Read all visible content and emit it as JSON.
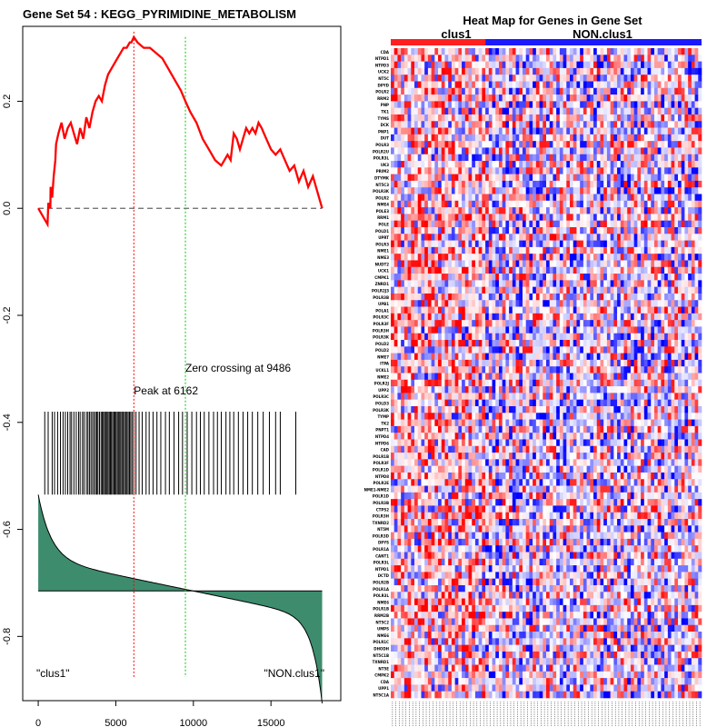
{
  "chart_data": [
    {
      "type": "line",
      "title": "Gene Set  54 : KEGG_PYRIMIDINE_METABOLISM",
      "xlabel": "",
      "ylabel": "",
      "xlim": [
        -1000,
        19500
      ],
      "ylim": [
        -0.92,
        0.34
      ],
      "xticks": [
        0,
        5000,
        10000,
        15000
      ],
      "xtick_labels": [
        "0",
        "5000",
        "10000",
        "15000"
      ],
      "yticks": [
        0.2,
        0.0,
        -0.2,
        -0.4,
        -0.6,
        -0.8
      ],
      "ytick_labels": [
        "0.2",
        "0.0",
        "-0.2",
        "-0.4",
        "-0.6",
        "-0.8"
      ],
      "running_es": {
        "x": [
          0,
          600,
          650,
          780,
          800,
          900,
          1000,
          1100,
          1150,
          1300,
          1500,
          1700,
          1900,
          2100,
          2300,
          2500,
          2700,
          2900,
          3100,
          3300,
          3500,
          3700,
          3900,
          4100,
          4300,
          4500,
          4700,
          4900,
          5100,
          5300,
          5500,
          5700,
          5900,
          6000,
          6162,
          6400,
          6800,
          7200,
          7600,
          8000,
          8400,
          8800,
          9200,
          9486,
          9800,
          10200,
          10600,
          11000,
          11400,
          11800,
          12000,
          12200,
          12400,
          12600,
          12800,
          13000,
          13200,
          13400,
          13600,
          13800,
          14000,
          14200,
          14400,
          14700,
          15000,
          15300,
          15600,
          15900,
          16200,
          16500,
          16800,
          17100,
          17400,
          17700,
          18000,
          18300
        ],
        "y": [
          0.0,
          -0.03,
          0.01,
          0.0,
          0.04,
          0.02,
          0.06,
          0.09,
          0.12,
          0.14,
          0.16,
          0.13,
          0.15,
          0.16,
          0.14,
          0.12,
          0.15,
          0.13,
          0.17,
          0.15,
          0.18,
          0.2,
          0.21,
          0.2,
          0.23,
          0.25,
          0.26,
          0.27,
          0.28,
          0.29,
          0.3,
          0.3,
          0.31,
          0.31,
          0.32,
          0.31,
          0.3,
          0.3,
          0.29,
          0.28,
          0.26,
          0.24,
          0.22,
          0.2,
          0.18,
          0.16,
          0.13,
          0.11,
          0.09,
          0.08,
          0.09,
          0.1,
          0.09,
          0.14,
          0.13,
          0.11,
          0.13,
          0.15,
          0.14,
          0.15,
          0.14,
          0.16,
          0.15,
          0.13,
          0.11,
          0.1,
          0.11,
          0.09,
          0.07,
          0.08,
          0.05,
          0.07,
          0.04,
          0.06,
          0.03,
          0.0
        ],
        "color": "#ff0000"
      },
      "zero_line": 0.0,
      "peak": {
        "x": 6162,
        "label": "Peak at 6162",
        "color": "#ff0000"
      },
      "zero_crossing": {
        "x": 9486,
        "label": "Zero crossing at 9486",
        "color": "#00cc00"
      },
      "gene_hits": [
        420,
        640,
        900,
        1050,
        1250,
        1430,
        1600,
        1750,
        1900,
        2050,
        2150,
        2300,
        2450,
        2600,
        2700,
        2850,
        2950,
        3100,
        3200,
        3300,
        3400,
        3500,
        3600,
        3700,
        3780,
        3850,
        3950,
        4050,
        4130,
        4200,
        4280,
        4350,
        4430,
        4500,
        4580,
        4650,
        4720,
        4800,
        4880,
        4950,
        5020,
        5100,
        5170,
        5250,
        5320,
        5400,
        5480,
        5560,
        5640,
        5720,
        5800,
        5880,
        5960,
        6050,
        6162,
        6300,
        6500,
        6700,
        6950,
        7150,
        7400,
        7650,
        7900,
        8200,
        8450,
        8750,
        9050,
        9300,
        9600,
        9900,
        10200,
        10450,
        10700,
        11000,
        11300,
        11550,
        11800,
        12100,
        12350,
        12600,
        12900,
        13200,
        13500,
        13800,
        14150,
        14500,
        14900,
        15300,
        15600,
        16600
      ],
      "ranked_metric": {
        "baseline": -0.715,
        "max": -0.535,
        "min": -0.925,
        "fill": "#3d8c6e"
      },
      "annotations": {
        "left_label": "\"clus1\"",
        "right_label": "\"NON.clus1\""
      }
    },
    {
      "type": "heatmap",
      "title": "Heat Map for Genes in Gene Set",
      "class_labels": [
        "clus1",
        "NON.clus1"
      ],
      "class_colors": [
        "#ff2020",
        "#1a1aff"
      ],
      "n_columns": 92,
      "n_clus1_columns": 28,
      "genes": [
        "CDA",
        "NTPD1",
        "NTPD3",
        "UCK2",
        "NT5C",
        "DPYD",
        "POLR2",
        "RRM2",
        "PNP",
        "TK1",
        "TYMS",
        "DCK",
        "PNP1",
        "DUT",
        "POLR3",
        "POLR2U",
        "POLR3L",
        "UK3",
        "PRIM2",
        "DTYMK",
        "NT5C3",
        "POLR3K",
        "POLR2",
        "NME4",
        "POLE3",
        "RRM1",
        "POLE",
        "POLD1",
        "UPRT",
        "POLR3",
        "NME1",
        "NME3",
        "NUDT2",
        "UCK1",
        "CMPK1",
        "ZNRD1",
        "POLR2J3",
        "POLR3B",
        "UPB1",
        "POLA1",
        "POLR3C",
        "POLR3F",
        "POLR3H",
        "POLR3K",
        "POLD2",
        "POLD2",
        "NME7",
        "ITPA",
        "UCKL1",
        "NME2",
        "POLR2J",
        "UPP2",
        "POLR3C",
        "POLD3",
        "POLR3K",
        "TYMP",
        "TK2",
        "PNPT1",
        "NTPD4",
        "NTPD6",
        "CAD",
        "POLR1B",
        "POLR3F",
        "POLR1D",
        "NTPD8",
        "POLR2E",
        "NME1-NME2",
        "POLR1D",
        "POLR3B",
        "CTPS2",
        "POLR3H",
        "TXNRD2",
        "NT5M",
        "POLR3D",
        "DPYS",
        "POLR1A",
        "CANT1",
        "POLR3L",
        "NTPD1",
        "DCTD",
        "POLR2B",
        "POLR1A",
        "POLR3L",
        "NME6",
        "POLR1B",
        "RRM2B",
        "NT5C2",
        "UMPS",
        "NME6",
        "POLR1C",
        "DHODH",
        "NT5C1B",
        "TXNRD1",
        "NT5E",
        "CMPK2",
        "CDA",
        "UPP1",
        "NT5C1A"
      ],
      "colorscale": [
        "#0000ff",
        "#ffffff",
        "#ff0000"
      ]
    }
  ]
}
